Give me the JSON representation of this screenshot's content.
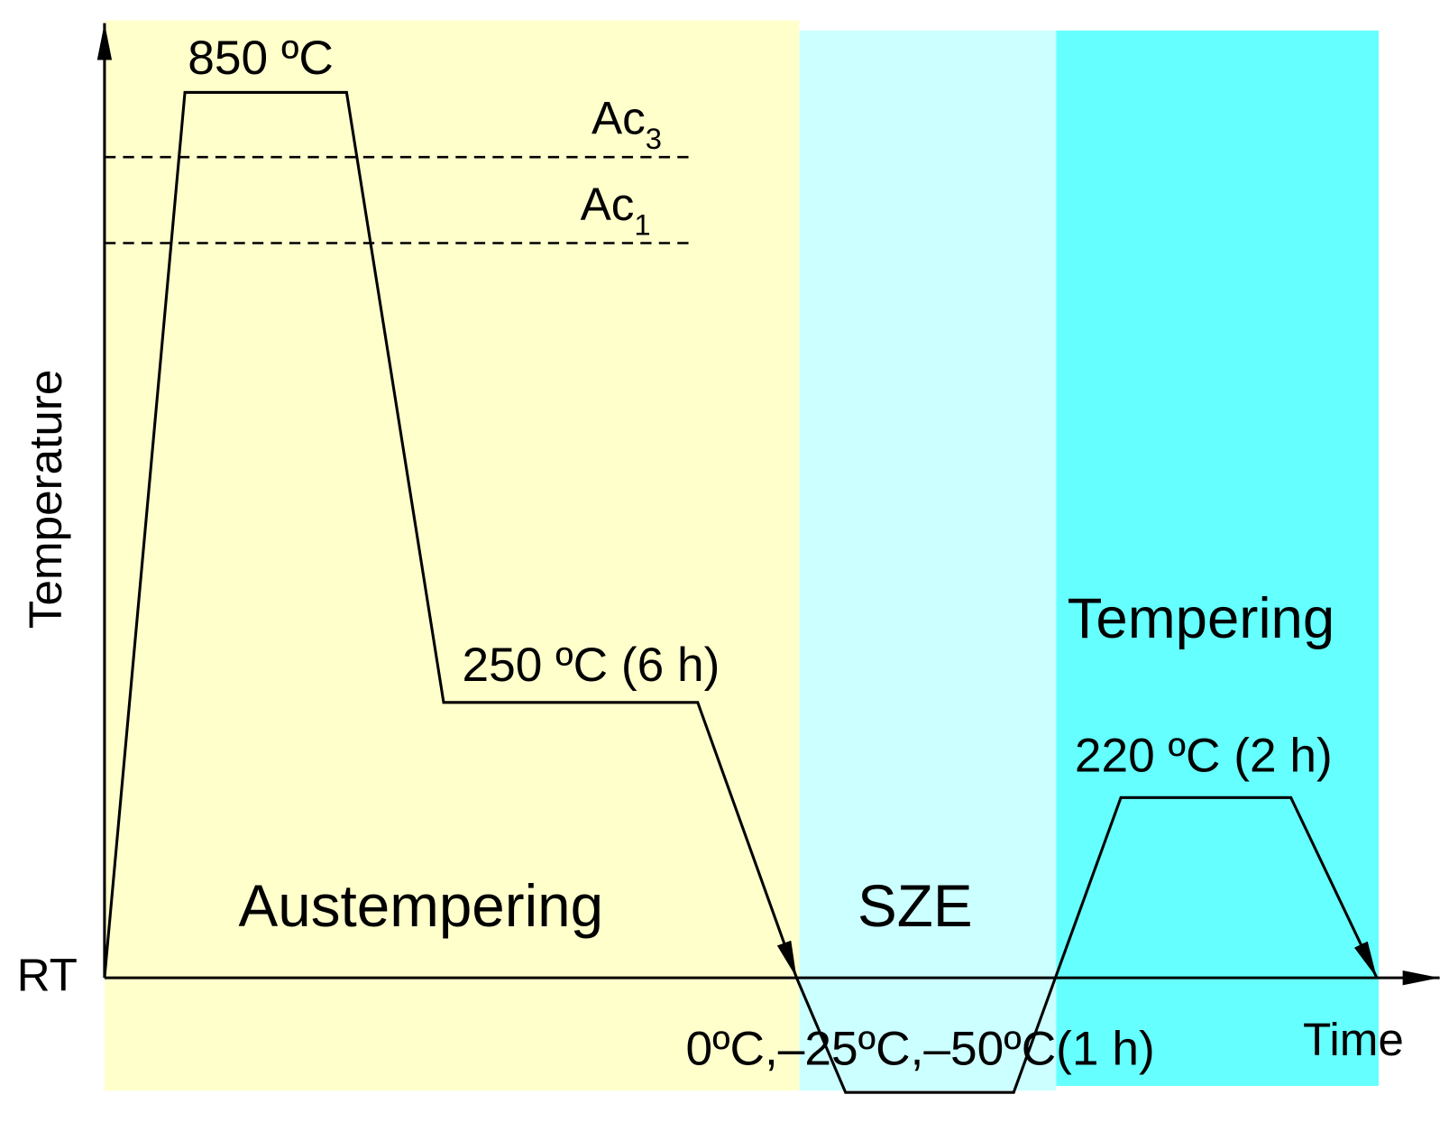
{
  "labels": {
    "peak": "850 ºC",
    "ac3": {
      "base": "Ac",
      "sub": "3"
    },
    "ac1": {
      "base": "Ac",
      "sub": "1"
    },
    "y_axis": "Temperature",
    "x_axis": "Time",
    "origin": "RT",
    "hold": "250 ºC (6 h)",
    "tempering_temp": "220 ºC (2 h)",
    "sze_temp": "0ºC,–25ºC,–50ºC(1 h)"
  },
  "stages": [
    "Austempering",
    "SZE",
    "Tempering"
  ]
}
